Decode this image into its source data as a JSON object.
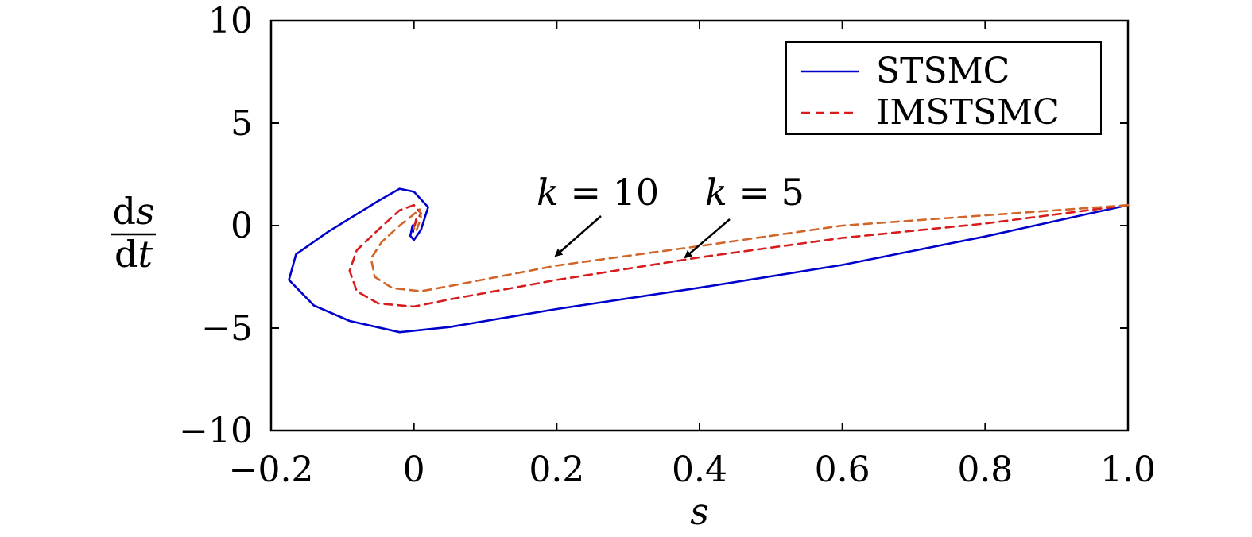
{
  "chart_data": {
    "type": "line",
    "title": "",
    "xlabel": "s",
    "ylabel": {
      "numerator": "ds",
      "denominator": "dt"
    },
    "xlim": [
      -0.2,
      1.0
    ],
    "ylim": [
      -10,
      10
    ],
    "x_ticks": [
      -0.2,
      0,
      0.2,
      0.4,
      0.6,
      0.8,
      1.0
    ],
    "x_tick_labels": [
      "−0.2",
      "0",
      "0.2",
      "0.4",
      "0.6",
      "0.8",
      "1.0"
    ],
    "y_ticks": [
      -10,
      -5,
      0,
      5,
      10
    ],
    "y_tick_labels": [
      "−10",
      "−5",
      "0",
      "5",
      "10"
    ],
    "grid": false,
    "legend_position": "top-right",
    "series": [
      {
        "name": "STSMC",
        "color": "#0000cc",
        "style": "solid",
        "points": [
          [
            1.0,
            1.0
          ],
          [
            0.8,
            -0.53
          ],
          [
            0.6,
            -1.92
          ],
          [
            0.4,
            -3.03
          ],
          [
            0.2,
            -4.07
          ],
          [
            0.05,
            -4.95
          ],
          [
            -0.02,
            -5.2
          ],
          [
            -0.09,
            -4.65
          ],
          [
            -0.14,
            -3.9
          ],
          [
            -0.175,
            -2.65
          ],
          [
            -0.165,
            -1.4
          ],
          [
            -0.12,
            -0.3
          ],
          [
            -0.05,
            1.2
          ],
          [
            -0.02,
            1.8
          ],
          [
            0.0,
            1.65
          ],
          [
            0.02,
            0.9
          ],
          [
            0.01,
            -0.2
          ],
          [
            0.0,
            -0.7
          ],
          [
            -0.005,
            -0.5
          ],
          [
            -0.002,
            0.0
          ],
          [
            -0.001,
            -0.3
          ]
        ]
      },
      {
        "name": "IMSTSMC",
        "label": "k = 5",
        "color": "#d81b1b",
        "style": "dashed",
        "points": [
          [
            1.0,
            1.0
          ],
          [
            0.8,
            0.1
          ],
          [
            0.6,
            -0.6
          ],
          [
            0.4,
            -1.55
          ],
          [
            0.2,
            -2.65
          ],
          [
            0.05,
            -3.6
          ],
          [
            0.0,
            -3.95
          ],
          [
            -0.05,
            -3.8
          ],
          [
            -0.08,
            -3.2
          ],
          [
            -0.09,
            -2.2
          ],
          [
            -0.08,
            -1.2
          ],
          [
            -0.05,
            -0.2
          ],
          [
            -0.02,
            0.75
          ],
          [
            0.0,
            1.0
          ],
          [
            0.01,
            0.6
          ],
          [
            0.0,
            0.0
          ],
          [
            0.0,
            -0.2
          ],
          [
            0.003,
            0.3
          ]
        ]
      },
      {
        "name": "IMSTSMC",
        "label": "k = 10",
        "color": "#d0662a",
        "style": "dashed",
        "points": [
          [
            1.0,
            1.0
          ],
          [
            0.8,
            0.5
          ],
          [
            0.6,
            0.0
          ],
          [
            0.4,
            -1.0
          ],
          [
            0.2,
            -1.95
          ],
          [
            0.05,
            -2.95
          ],
          [
            0.01,
            -3.2
          ],
          [
            -0.03,
            -3.05
          ],
          [
            -0.055,
            -2.5
          ],
          [
            -0.06,
            -1.6
          ],
          [
            -0.045,
            -0.8
          ],
          [
            -0.02,
            0.0
          ],
          [
            -0.002,
            0.5
          ],
          [
            0.008,
            0.8
          ],
          [
            0.01,
            0.4
          ],
          [
            0.003,
            -0.3
          ],
          [
            0.0,
            -0.1
          ]
        ]
      }
    ],
    "legend": [
      "STSMC",
      "IMSTSMC"
    ],
    "annotations": [
      {
        "text": "k = 10",
        "points_to": [
          0.19,
          -1.5
        ]
      },
      {
        "text": "k = 5",
        "points_to": [
          0.37,
          -1.6
        ]
      }
    ]
  }
}
